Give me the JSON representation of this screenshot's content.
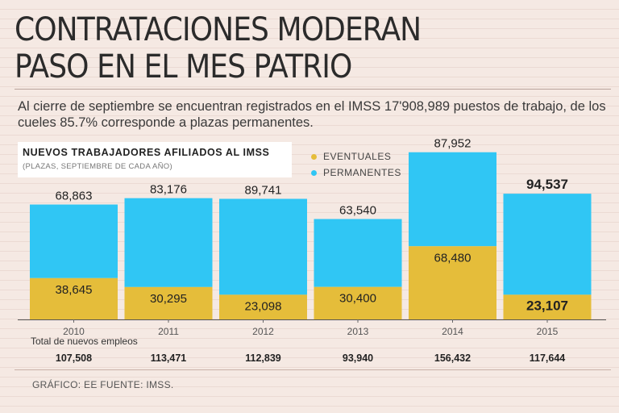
{
  "header": {
    "title_line1": "CONTRATACIONES MODERAN",
    "title_line2": "PASO EN EL MES PATRIO",
    "subtitle": "Al cierre de septiembre se encuentran registrados en el IMSS 17'908,989 puestos de trabajo, de los cueles 85.7% corresponde a plazas permanentes."
  },
  "chart_data": {
    "type": "bar",
    "stacked": true,
    "title": "NUEVOS TRABAJADORES AFILIADOS AL IMSS",
    "subtitle": "(PLAZAS, SEPTIEMBRE DE CADA AÑO)",
    "categories": [
      "2010",
      "2011",
      "2012",
      "2013",
      "2014",
      "2015"
    ],
    "series": [
      {
        "name": "EVENTUALES",
        "color": "#e5bd3a",
        "values": [
          38645,
          30295,
          23098,
          30400,
          68480,
          23107
        ],
        "labels": [
          "38,645",
          "30,295",
          "23,098",
          "30,400",
          "68,480",
          "23,107"
        ]
      },
      {
        "name": "PERMANENTES",
        "color": "#30c6f4",
        "values": [
          68863,
          83176,
          89741,
          63540,
          87952,
          94537
        ],
        "labels": [
          "68,863",
          "83,176",
          "89,741",
          "63,540",
          "87,952",
          "94,537"
        ]
      }
    ],
    "totals_label": "Total de nuevos empleos",
    "totals": [
      "107,508",
      "113,471",
      "112,839",
      "93,940",
      "156,432",
      "117,644"
    ],
    "highlight_category": "2015",
    "ylim": [
      0,
      160000
    ],
    "xlabel": "",
    "ylabel": ""
  },
  "footer": {
    "source": "GRÁFICO: EE FUENTE: IMSS."
  }
}
